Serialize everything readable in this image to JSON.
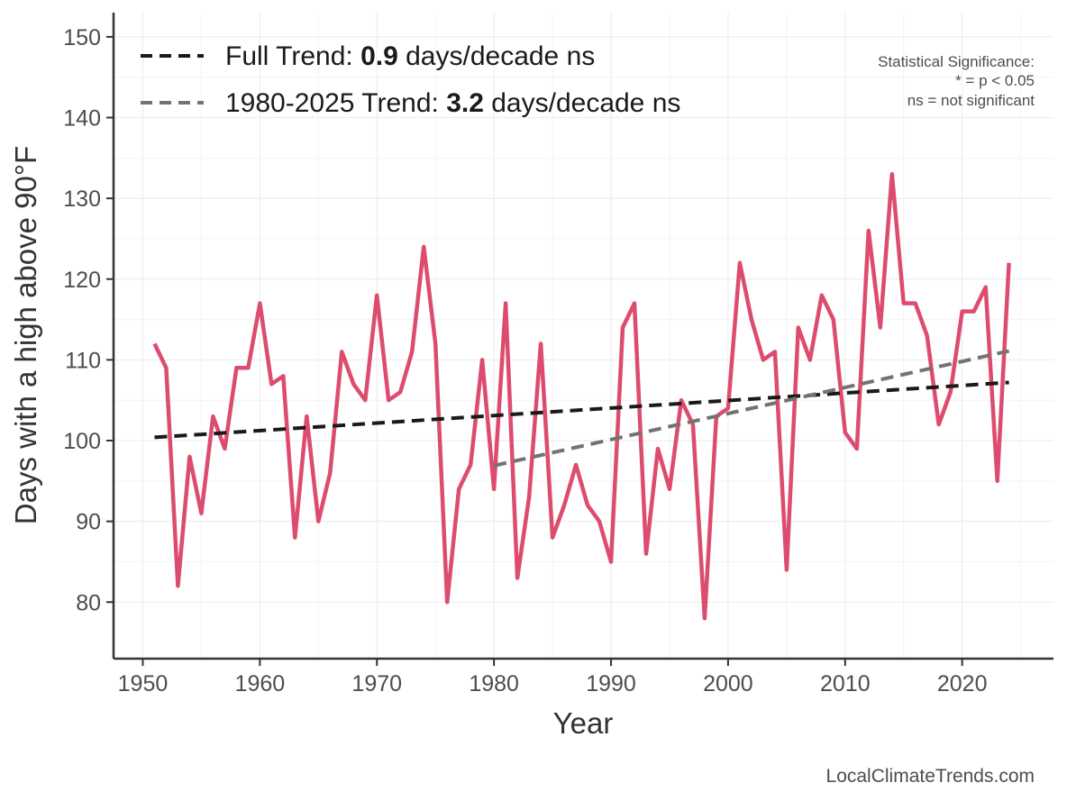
{
  "chart_data": {
    "type": "line",
    "title": "",
    "xlabel": "Year",
    "ylabel": "Days with a high above 90°F",
    "xlim": [
      1947.5,
      2027.8
    ],
    "ylim": [
      73,
      153
    ],
    "xticks": [
      1950,
      1960,
      1970,
      1980,
      1990,
      2000,
      2010,
      2020
    ],
    "yticks": [
      80,
      90,
      100,
      110,
      120,
      130,
      140,
      150
    ],
    "grid": true,
    "series": [
      {
        "name": "Days with a high above 90°F",
        "color": "#dd4c6e",
        "x": [
          1951,
          1952,
          1953,
          1954,
          1955,
          1956,
          1957,
          1958,
          1959,
          1960,
          1961,
          1962,
          1963,
          1964,
          1965,
          1966,
          1967,
          1968,
          1969,
          1970,
          1971,
          1972,
          1973,
          1974,
          1975,
          1976,
          1977,
          1978,
          1979,
          1980,
          1981,
          1982,
          1983,
          1984,
          1985,
          1986,
          1987,
          1988,
          1989,
          1990,
          1991,
          1992,
          1993,
          1994,
          1995,
          1996,
          1997,
          1998,
          1999,
          2000,
          2001,
          2002,
          2003,
          2004,
          2005,
          2006,
          2007,
          2008,
          2009,
          2010,
          2011,
          2012,
          2013,
          2014,
          2015,
          2016,
          2017,
          2018,
          2019,
          2020,
          2021,
          2022,
          2023,
          2024
        ],
        "values": [
          112,
          109,
          82,
          98,
          91,
          103,
          99,
          109,
          109,
          117,
          107,
          108,
          88,
          103,
          90,
          96,
          111,
          107,
          105,
          118,
          105,
          106,
          111,
          124,
          112,
          80,
          94,
          97,
          110,
          94,
          117,
          83,
          93,
          112,
          88,
          92,
          97,
          92,
          90,
          85,
          114,
          117,
          86,
          99,
          94,
          105,
          102,
          78,
          103,
          104,
          122,
          115,
          110,
          111,
          84,
          114,
          110,
          118,
          115,
          101,
          99,
          126,
          114,
          133,
          117,
          117,
          113,
          102,
          106,
          116,
          116,
          119,
          95,
          122
        ]
      }
    ],
    "trends": [
      {
        "label_prefix": "Full Trend: ",
        "rate": "0.9",
        "label_suffix": " days/decade ns",
        "color": "#1a1a1a",
        "x": [
          1951,
          2024
        ],
        "values": [
          100.4,
          107.2
        ]
      },
      {
        "label_prefix": "1980-2025 Trend: ",
        "rate": "3.2",
        "label_suffix": " days/decade ns",
        "color": "#737373",
        "x": [
          1980,
          2024
        ],
        "values": [
          96.9,
          111.1
        ]
      }
    ],
    "significance_note": {
      "title": "Statistical Significance:",
      "line1": "* = p < 0.05",
      "line2": "ns = not significant"
    },
    "legend_position": "top-left"
  },
  "credit": "LocalClimateTrends.com"
}
